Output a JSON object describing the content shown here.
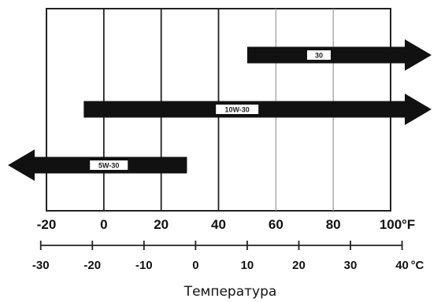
{
  "chart_data": {
    "type": "range-bar",
    "title": "",
    "xlabel": "Температура",
    "x_unit_primary": "°F",
    "x_unit_secondary": "°C",
    "xlim_f": [
      -20,
      100
    ],
    "ticks_f": [
      -20,
      0,
      20,
      40,
      60,
      80,
      100
    ],
    "ticks_c": [
      -30,
      -20,
      -10,
      0,
      10,
      20,
      30,
      40
    ],
    "grid": true,
    "series": [
      {
        "name": "30",
        "min_f": 50,
        "max_f": 100,
        "extends_left": false,
        "extends_right": true
      },
      {
        "name": "10W-30",
        "min_f": -7,
        "max_f": 100,
        "extends_left": false,
        "extends_right": true
      },
      {
        "name": "5W-30",
        "min_f": -20,
        "max_f": 29,
        "extends_left": true,
        "extends_right": false
      }
    ]
  },
  "colors": {
    "bar": "#111111",
    "grid_dark": "#222222",
    "grid_light": "#9a9a9a",
    "label_box": "#ffffff"
  }
}
